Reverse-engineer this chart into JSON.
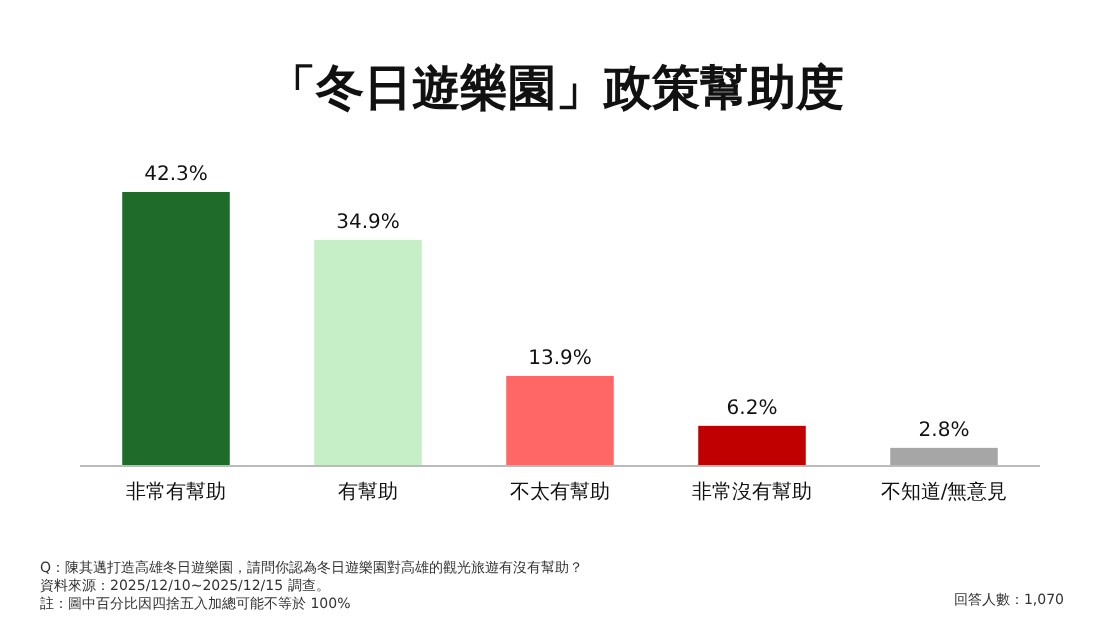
{
  "chart_data": {
    "type": "bar",
    "title": "「冬日遊樂園」政策幫助度",
    "categories": [
      "非常有幫助",
      "有幫助",
      "不太有幫助",
      "非常沒有幫助",
      "不知道/無意見"
    ],
    "values": [
      42.3,
      34.9,
      13.9,
      6.2,
      2.8
    ],
    "colors": [
      "#1e6b2a",
      "#c6efc8",
      "#ff6666",
      "#c00000",
      "#a6a6a6"
    ],
    "value_labels": [
      "42.3%",
      "34.9%",
      "13.9%",
      "6.2%",
      "2.8%"
    ],
    "annotations": [
      "Q：陳其邁打造高雄冬日遊樂園，請問你認為冬日遊樂園對高雄的觀光旅遊有沒有幫助？",
      "資料來源：2025/12/10~2025/12/15 調查。",
      "註：圖中百分比因四捨五入加總可能不等於 100%",
      "回答人數：1,070"
    ]
  }
}
